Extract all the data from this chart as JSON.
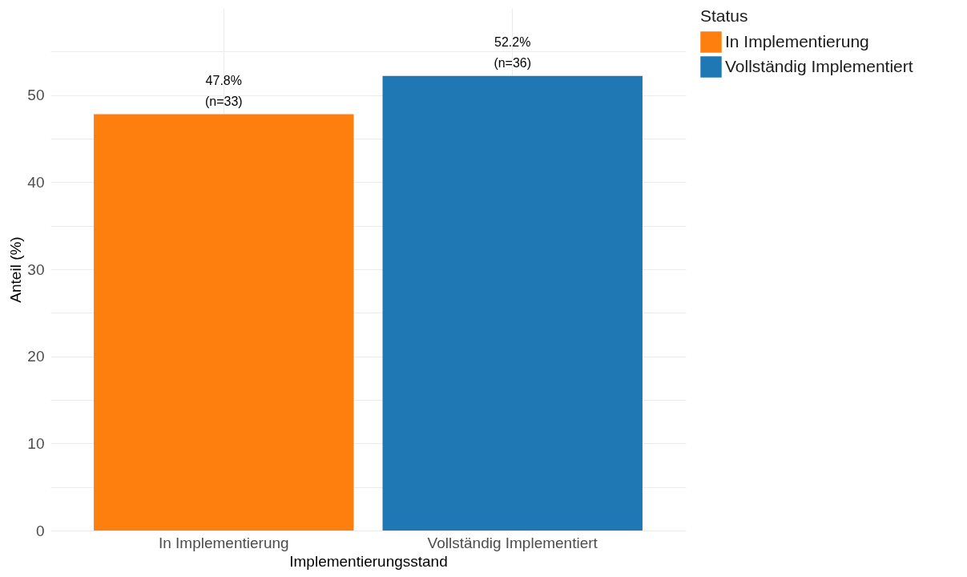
{
  "chart_data": {
    "type": "bar",
    "xlabel": "Implementierungsstand",
    "ylabel": "Anteil (%)",
    "legend_title": "Status",
    "categories": [
      "In Implementierung",
      "Vollständig Implementiert"
    ],
    "series": [
      {
        "name": "In Implementierung",
        "color": "#ff7f0e",
        "values": [
          47.8,
          null
        ]
      },
      {
        "name": "Vollständig Implementiert",
        "color": "#1f77b4",
        "values": [
          null,
          52.2
        ]
      }
    ],
    "value_labels": [
      "47.8%\n(n=33)",
      "52.2%\n(n=36)"
    ],
    "ylim": [
      0,
      60
    ],
    "yticks": [
      0,
      {
        "value": 5,
        "label": null
      },
      10,
      {
        "value": 15,
        "label": null
      },
      20,
      {
        "value": 25,
        "label": null
      },
      30,
      {
        "value": 35,
        "label": null
      },
      40,
      {
        "value": 45,
        "label": null
      },
      50,
      {
        "value": 55,
        "label": null
      }
    ],
    "grid": true,
    "legend": "right"
  }
}
